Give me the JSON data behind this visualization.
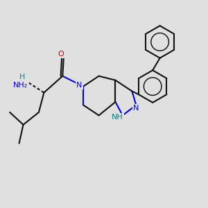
{
  "bg_color": "#e0e0e0",
  "bond_color": "#111111",
  "bond_width": 1.5,
  "n_color": "#0000ee",
  "o_color": "#dd0000",
  "nh_color": "#008888",
  "font_size": 8,
  "figsize": [
    3.0,
    3.0
  ],
  "dpi": 100,
  "xlim": [
    0,
    10
  ],
  "ylim": [
    0,
    10
  ]
}
